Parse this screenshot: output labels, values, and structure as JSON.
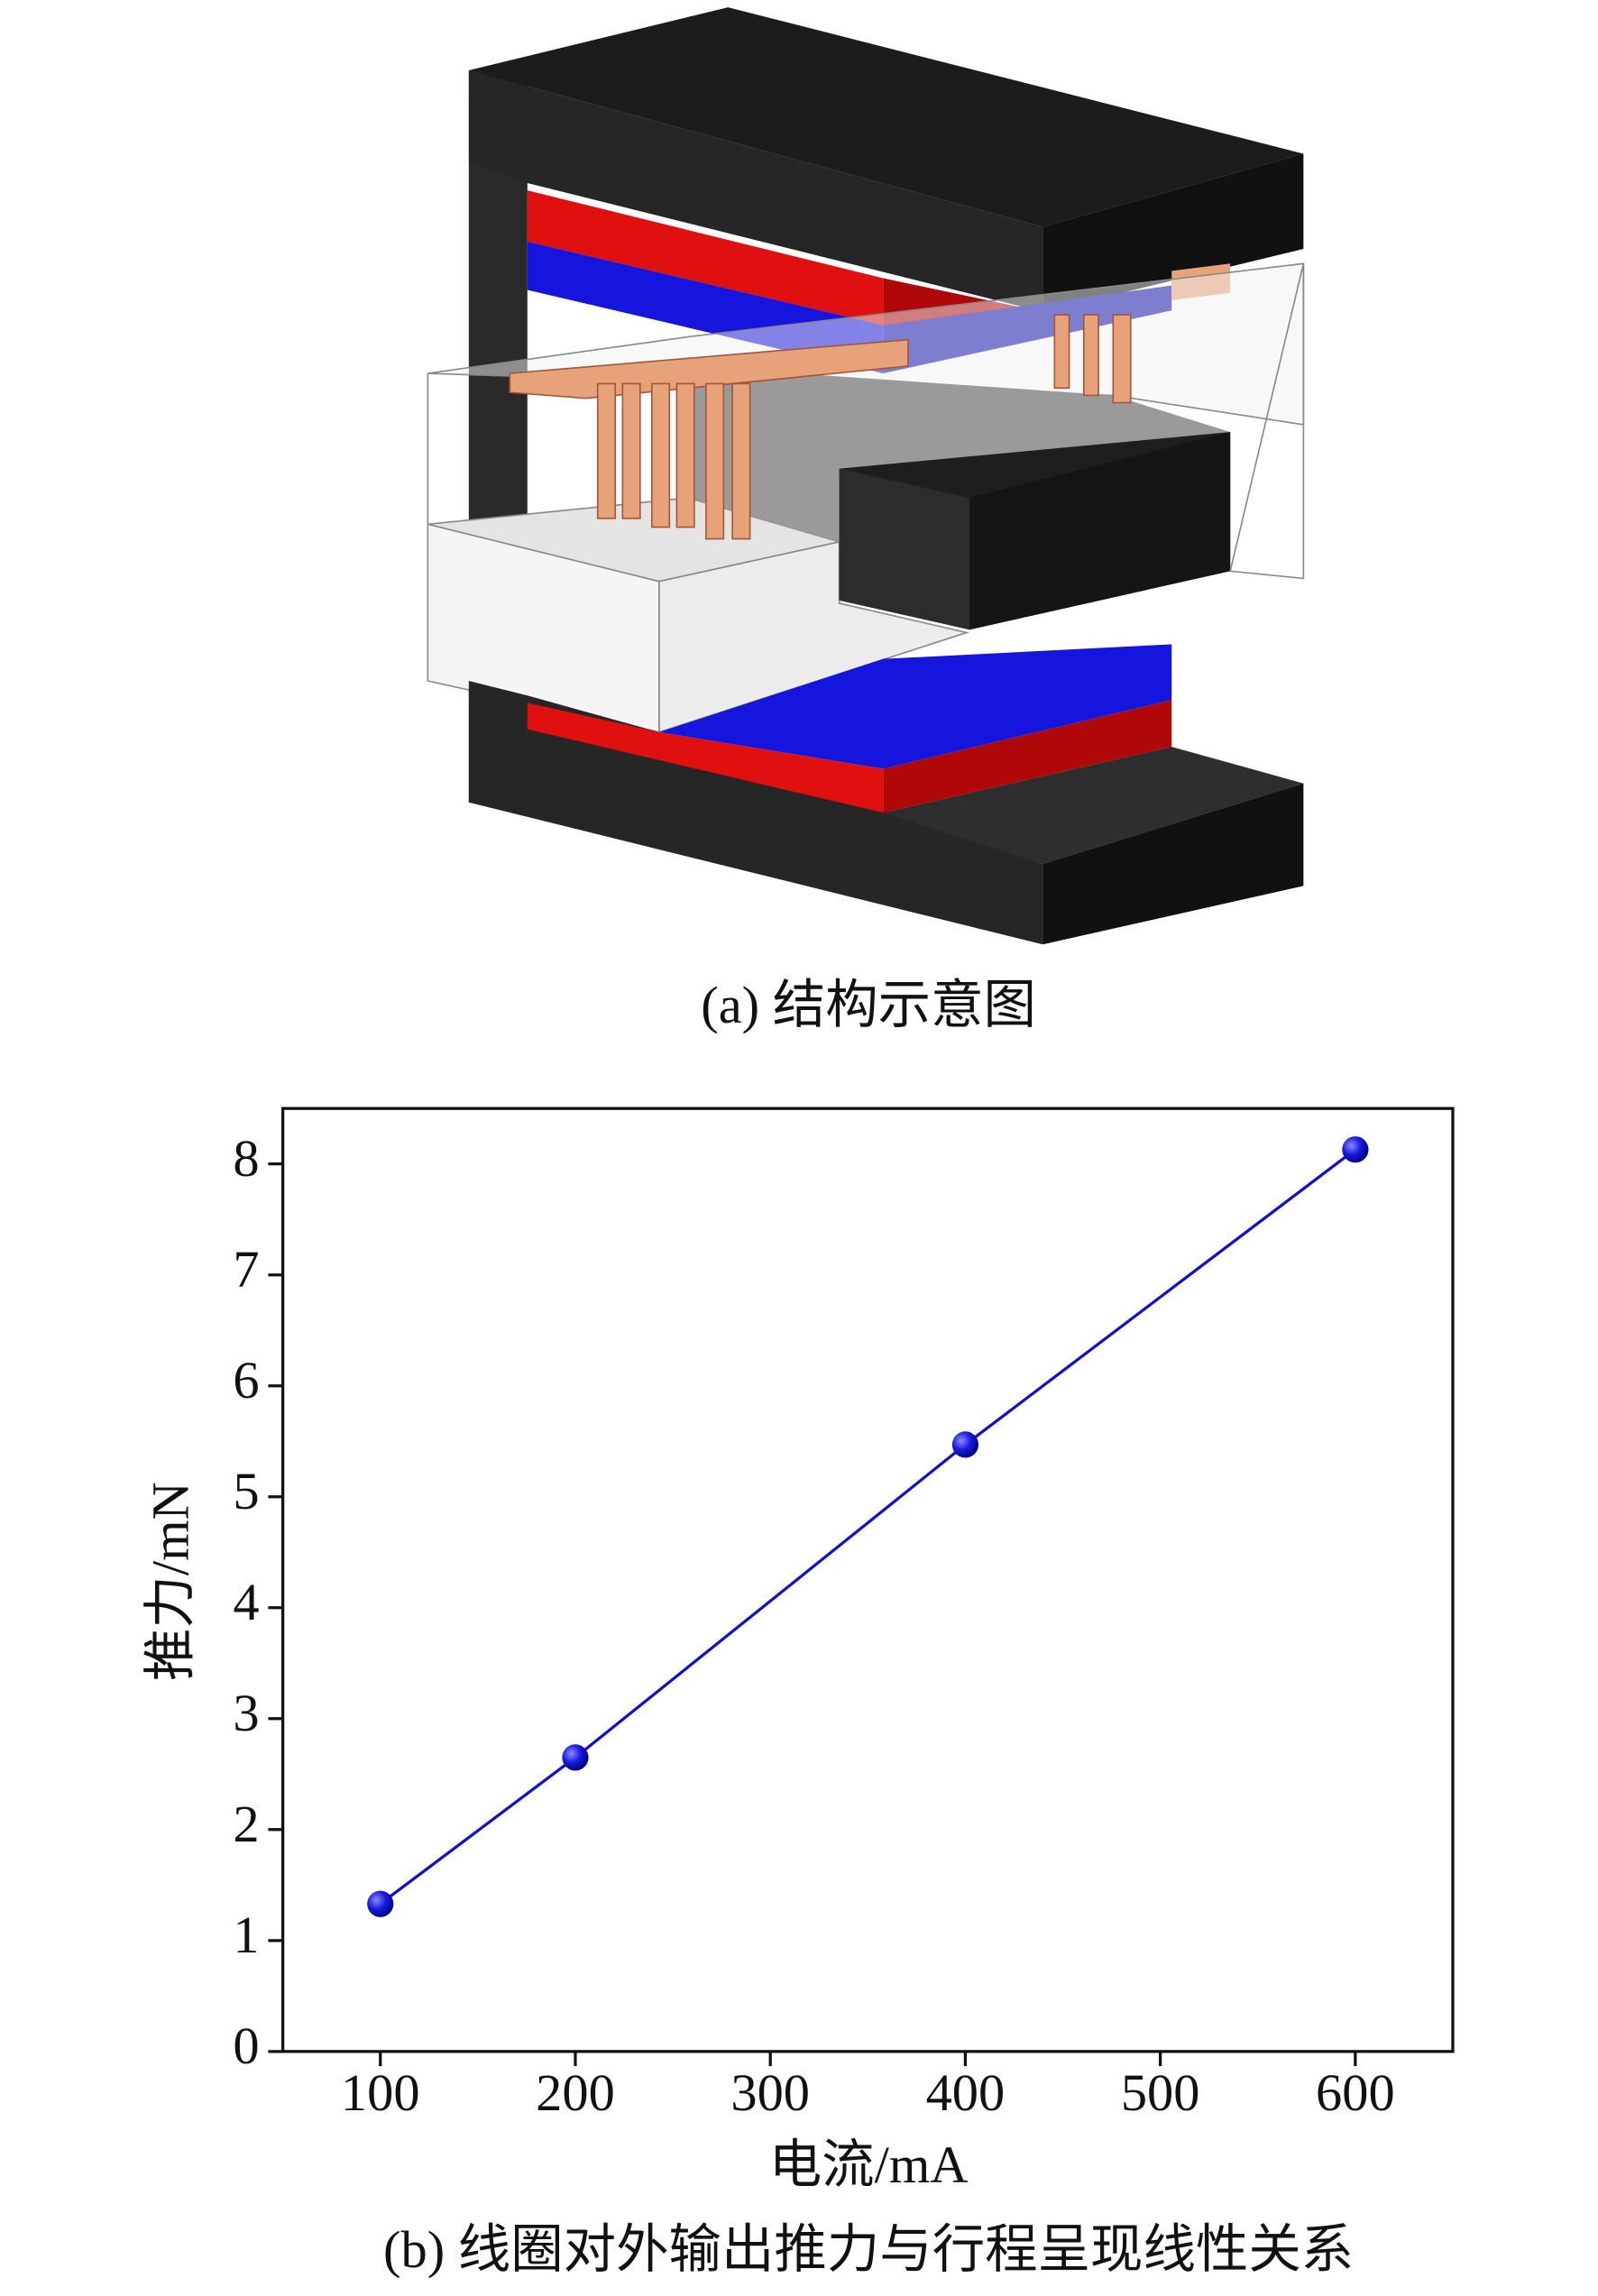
{
  "figure_a": {
    "caption": "(a) 结构示意图"
  },
  "chart_data": {
    "type": "line",
    "caption": "(b) 线圈对外输出推力与行程呈现线性关系",
    "x_label": "电流/mA",
    "y_label": "推力/mN",
    "x": [
      100,
      200,
      400,
      600
    ],
    "series": [
      {
        "name": "推力",
        "color": "#1010d0",
        "values": [
          1.33,
          2.65,
          5.47,
          8.13
        ]
      }
    ],
    "xlim": [
      50,
      650
    ],
    "xticks": [
      100,
      200,
      300,
      400,
      500,
      600
    ],
    "ylim": [
      0,
      8.5
    ],
    "yticks": [
      0,
      1,
      2,
      3,
      4,
      5,
      6,
      7,
      8
    ],
    "grid": false,
    "legend": false
  }
}
